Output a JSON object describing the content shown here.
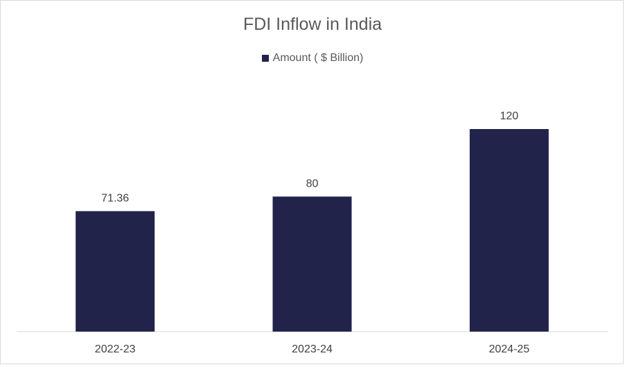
{
  "chart_data": {
    "type": "bar",
    "title": "FDI Inflow in India",
    "categories": [
      "2022-23",
      "2023-24",
      "2024-25"
    ],
    "series": [
      {
        "name": "Amount ( $ Billion)",
        "values": [
          71.36,
          80,
          120
        ],
        "labels": [
          "71.36",
          "80",
          "120"
        ],
        "color": "#22234b"
      }
    ],
    "ylim": [
      0,
      150
    ],
    "grid": false,
    "legend": "top"
  }
}
